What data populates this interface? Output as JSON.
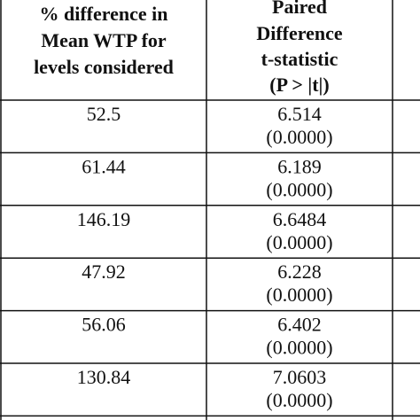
{
  "table": {
    "header": [
      [
        "% difference in",
        "Mean WTP for",
        "levels considered"
      ],
      [
        "Paired",
        "Difference",
        "t-statistic",
        "(P > |t|)"
      ]
    ],
    "rows": [
      [
        "52.5",
        "6.514",
        "(0.0000)"
      ],
      [
        "61.44",
        "6.189",
        "(0.0000)"
      ],
      [
        "146.19",
        "6.6484",
        "(0.0000)"
      ],
      [
        "47.92",
        "6.228",
        "(0.0000)"
      ],
      [
        "56.06",
        "6.402",
        "(0.0000)"
      ],
      [
        "130.84",
        "7.0603",
        "(0.0000)"
      ]
    ]
  }
}
